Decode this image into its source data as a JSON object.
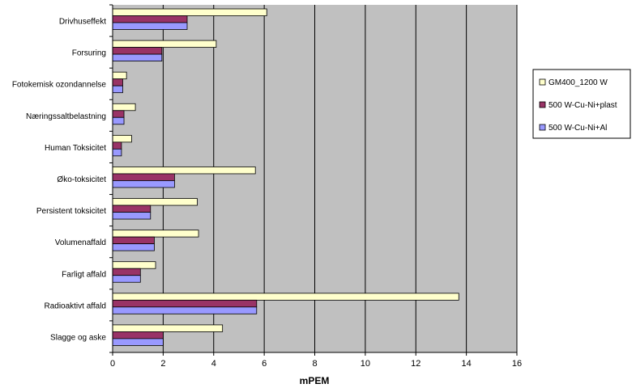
{
  "chart_data": {
    "type": "bar",
    "orientation": "horizontal",
    "categories": [
      "Drivhuseffekt",
      "Forsuring",
      "Fotokemisk ozondannelse",
      "Næringssaltbelastning",
      "Human Toksicitet",
      "Øko-toksicitet",
      "Persistent toksicitet",
      "Volumenaffald",
      "Farligt affald",
      "Radioaktivt affald",
      "Slagge og aske"
    ],
    "series": [
      {
        "name": "GM400_1200 W",
        "color": "#ffffcc",
        "values": [
          6.1,
          4.1,
          0.55,
          0.9,
          0.75,
          5.65,
          3.35,
          3.4,
          1.7,
          13.7,
          4.35
        ]
      },
      {
        "name": "500 W-Cu-Ni+plast",
        "color": "#993366",
        "values": [
          2.95,
          1.95,
          0.4,
          0.45,
          0.35,
          2.45,
          1.5,
          1.65,
          1.1,
          5.7,
          2.0
        ]
      },
      {
        "name": "500 W-Cu-Ni+Al",
        "color": "#9999ff",
        "values": [
          2.95,
          1.95,
          0.4,
          0.45,
          0.35,
          2.45,
          1.5,
          1.65,
          1.1,
          5.7,
          2.0
        ]
      }
    ],
    "xlabel": "mPEM",
    "xlim": [
      0,
      16
    ],
    "xticks": [
      "0",
      "2",
      "4",
      "6",
      "8",
      "10",
      "12",
      "14",
      "16"
    ],
    "grid": "vertical",
    "plot_background": "#c0c0c0",
    "legend_position": "right"
  }
}
